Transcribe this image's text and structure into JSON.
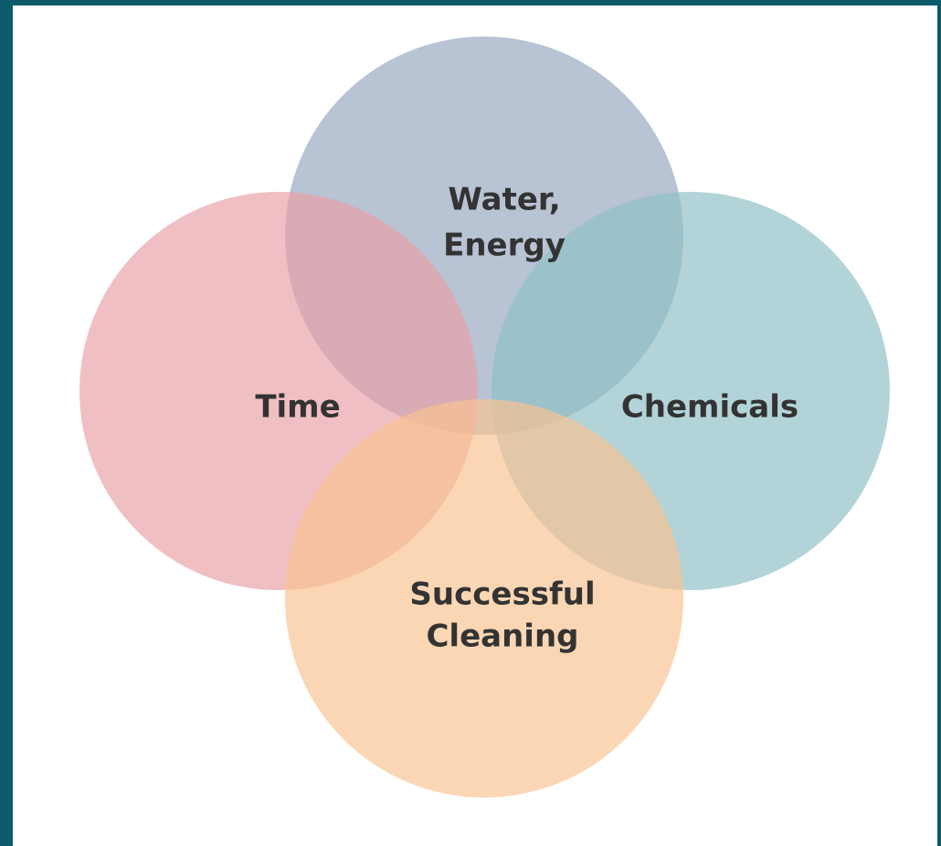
{
  "nodes": [
    {
      "label": [
        "Water,",
        "Energy"
      ]
    },
    {
      "label": [
        "Time"
      ]
    },
    {
      "label": [
        "Chemicals"
      ]
    },
    {
      "label": [
        "Successful",
        "Cleaning"
      ]
    }
  ]
}
